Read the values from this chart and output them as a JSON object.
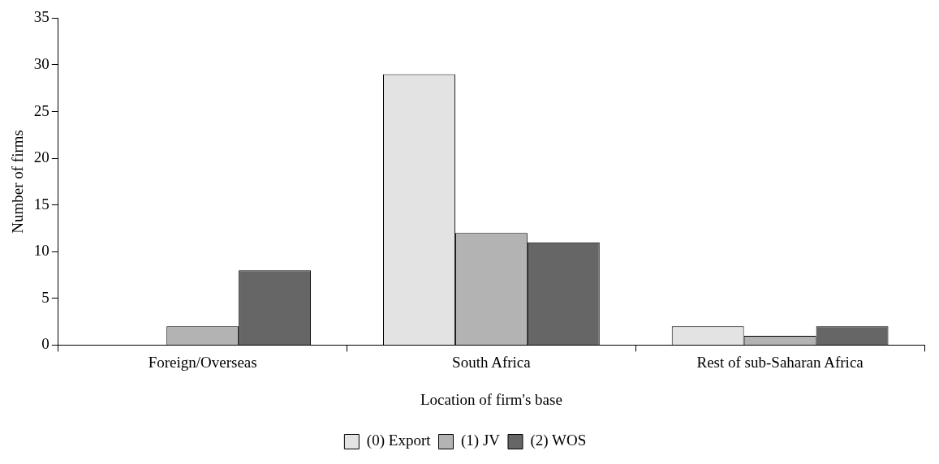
{
  "chart_data": {
    "type": "bar",
    "xlabel": "Location of firm's base",
    "ylabel": "Number of firms",
    "categories": [
      "Foreign/Overseas",
      "South Africa",
      "Rest of sub-Saharan Africa"
    ],
    "series": [
      {
        "name": "(0) Export",
        "color": "#e3e3e3",
        "values": [
          0,
          29,
          2
        ]
      },
      {
        "name": "(1) JV",
        "color": "#b3b3b3",
        "values": [
          2,
          12,
          1
        ]
      },
      {
        "name": "(2) WOS",
        "color": "#666666",
        "values": [
          8,
          11,
          2
        ]
      }
    ],
    "ylim": [
      0,
      35
    ],
    "yticks": [
      0,
      5,
      10,
      15,
      20,
      25,
      30,
      35
    ],
    "grid": false,
    "legend": "bottom"
  }
}
